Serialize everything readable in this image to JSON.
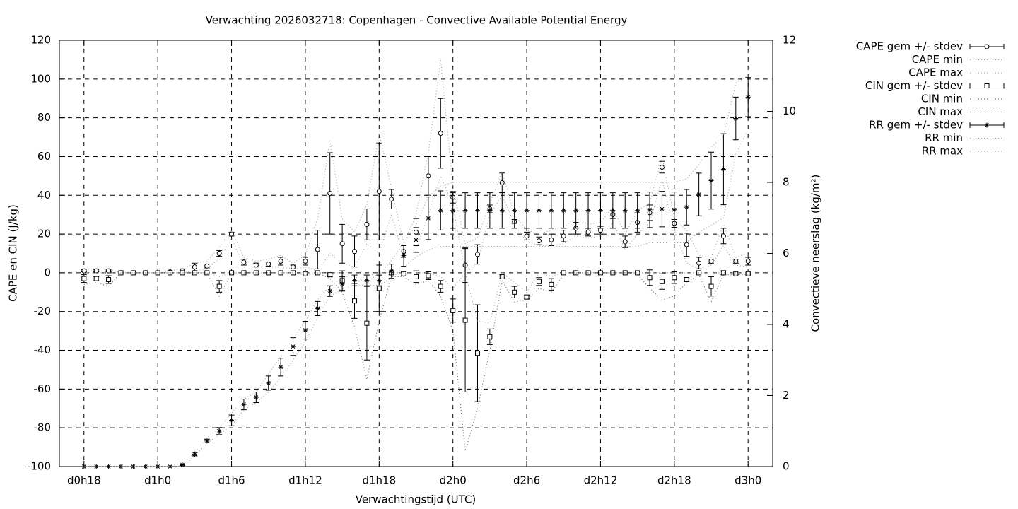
{
  "chart_data": {
    "type": "errorbar",
    "title": "Verwachting 2026032718: Copenhagen - Convective Available Potential Energy",
    "x_label": "Verwachtingstijd (UTC)",
    "y_label": "CAPE en CIN (J/kg)",
    "y2_label": "Convectieve neerslag (kg/m²)",
    "x": [
      18,
      19,
      20,
      21,
      22,
      23,
      24,
      25,
      26,
      27,
      28,
      29,
      30,
      31,
      32,
      33,
      34,
      35,
      36,
      37,
      38,
      39,
      40,
      41,
      42,
      43,
      44,
      45,
      46,
      47,
      48,
      49,
      50,
      51,
      52,
      53,
      54,
      55,
      56,
      57,
      58,
      59,
      60,
      61,
      62,
      63,
      64,
      65,
      66,
      67,
      68,
      69,
      70,
      71,
      72
    ],
    "xlim": [
      16,
      74
    ],
    "xticks": [
      {
        "value": 18,
        "label": "d0h18"
      },
      {
        "value": 24,
        "label": "d1h0"
      },
      {
        "value": 30,
        "label": "d1h6"
      },
      {
        "value": 36,
        "label": "d1h12"
      },
      {
        "value": 42,
        "label": "d1h18"
      },
      {
        "value": 48,
        "label": "d2h0"
      },
      {
        "value": 54,
        "label": "d2h6"
      },
      {
        "value": 60,
        "label": "d2h12"
      },
      {
        "value": 66,
        "label": "d2h18"
      },
      {
        "value": 72,
        "label": "d3h0"
      }
    ],
    "ylim": [
      -100,
      120
    ],
    "yticks": [
      -100,
      -80,
      -60,
      -40,
      -20,
      0,
      20,
      40,
      60,
      80,
      100,
      120
    ],
    "y2lim": [
      0,
      12
    ],
    "y2ticks": [
      0,
      2,
      4,
      6,
      8,
      10,
      12
    ],
    "grid": true,
    "legend": "outside-top-right",
    "series": [
      {
        "name": "CAPE gem +/- stdev",
        "color": "#000000",
        "marker": "circle",
        "values": [
          1,
          1,
          1,
          0,
          0,
          0,
          0,
          0.5,
          1,
          3,
          3.5,
          10,
          20,
          5.5,
          4,
          4.5,
          6,
          3,
          6,
          12,
          41,
          15,
          11,
          25,
          42,
          38,
          11,
          21,
          50,
          72,
          39,
          4,
          9.5,
          33,
          46.5,
          26.5,
          19,
          16.5,
          17,
          19,
          23,
          21,
          22,
          30,
          16,
          26,
          31,
          54.5,
          25.5,
          14.5,
          5,
          6,
          19,
          6,
          6
        ],
        "errors": [
          0.5,
          0.5,
          0.5,
          0,
          0,
          0,
          0,
          0.5,
          1,
          2,
          1,
          1.5,
          1,
          1.5,
          1,
          1,
          2,
          1,
          2,
          10,
          21,
          10,
          8,
          8,
          25,
          5,
          3,
          7,
          10,
          18,
          3,
          9,
          5,
          2,
          5,
          1,
          2,
          2,
          3,
          3,
          3,
          2,
          2,
          2,
          3,
          5,
          4,
          3,
          2,
          6,
          3,
          1,
          4,
          1,
          2
        ]
      },
      {
        "name": "CAPE min",
        "color": "#999999",
        "dash": "dotted",
        "values": [
          0,
          0,
          0,
          0,
          0,
          0,
          0,
          0,
          0,
          1,
          2,
          7,
          18,
          3,
          3,
          3,
          3,
          2,
          3,
          1,
          10,
          5,
          3,
          15,
          10,
          30,
          8,
          12,
          30,
          50,
          35,
          0,
          5,
          30,
          40,
          25,
          16,
          14,
          14,
          15,
          19,
          18,
          19,
          26,
          12,
          20,
          26,
          48,
          22,
          5,
          2,
          4,
          14,
          4,
          3
        ]
      },
      {
        "name": "CAPE max",
        "color": "#999999",
        "dash": "dotted",
        "values": [
          2,
          2,
          2,
          0,
          0,
          0,
          0,
          1,
          2,
          5,
          6,
          13,
          22,
          8,
          6,
          7,
          9,
          5,
          9,
          28,
          68,
          28,
          21,
          35,
          72,
          44,
          15,
          30,
          62,
          110,
          44,
          15,
          18,
          36,
          52,
          30,
          22,
          20,
          22,
          24,
          28,
          25,
          26,
          34,
          20,
          32,
          36,
          60,
          28,
          22,
          9,
          8,
          25,
          8,
          10
        ]
      },
      {
        "name": "CIN gem +/- stdev",
        "color": "#000000",
        "marker": "square",
        "values": [
          -3,
          -3,
          -3.5,
          0,
          0,
          0,
          0,
          0,
          0,
          0,
          0,
          -7,
          0,
          0,
          0,
          0,
          0,
          0,
          -0.5,
          0,
          -1,
          -4,
          -14.5,
          -26,
          -8,
          0,
          -0.5,
          -2,
          -1.5,
          -7,
          -19.5,
          -24.5,
          -41.5,
          -33,
          -2,
          -10,
          -12.5,
          -4.5,
          -6,
          0,
          0,
          0,
          0,
          0,
          0,
          0,
          -2.5,
          -4.5,
          -2.5,
          -3.5,
          0,
          -7,
          0,
          -0.5,
          -0.5
        ],
        "errors": [
          2,
          1,
          2,
          0,
          0,
          0,
          0,
          0,
          0,
          0,
          0,
          3,
          0,
          0,
          0,
          0,
          0,
          0,
          0.5,
          0,
          1,
          5,
          9,
          19,
          12,
          1,
          1,
          3,
          2,
          3,
          6,
          37,
          25,
          4,
          1,
          3,
          1,
          2,
          3,
          0,
          0,
          0,
          0,
          0,
          0,
          0,
          4,
          4,
          3,
          1,
          0,
          5,
          1,
          0.5,
          0.5
        ]
      },
      {
        "name": "CIN min",
        "color": "#555555",
        "dash": "dotted",
        "values": [
          -6,
          -5,
          -7,
          0,
          0,
          0,
          0,
          0,
          0,
          0,
          0,
          -12,
          0,
          0,
          0,
          0,
          0,
          0,
          -1,
          0,
          -3,
          -10,
          -28,
          -55,
          -25,
          -2,
          -2,
          -6,
          -4,
          -12,
          -30,
          -92,
          -70,
          -40,
          -4,
          -15,
          -14,
          -8,
          -10,
          -1,
          0,
          0,
          0,
          0,
          0,
          -1,
          -8,
          -14,
          -12,
          -5,
          -1,
          -15,
          -1,
          -1,
          -1
        ]
      },
      {
        "name": "CIN max",
        "color": "#999999",
        "dash": "dotted",
        "values": [
          0,
          0,
          0,
          0,
          0,
          0,
          0,
          0,
          0,
          0,
          0,
          -2,
          0,
          0,
          0,
          0,
          0,
          0,
          0,
          0,
          0,
          0,
          -2,
          -5,
          0,
          0,
          0,
          0,
          0,
          -2,
          -8,
          0,
          -25,
          -26,
          0,
          -5,
          -10,
          0,
          -2,
          0,
          0,
          0,
          0,
          0,
          0,
          0,
          0,
          0,
          0,
          0,
          0,
          0,
          0,
          0,
          0
        ]
      },
      {
        "name": "RR gem +/- stdev",
        "color": "#000000",
        "marker": "star",
        "axis": "y2",
        "values": [
          0,
          0,
          0,
          0,
          0,
          0,
          0,
          0,
          0.05,
          0.35,
          0.72,
          1,
          1.3,
          1.75,
          1.95,
          2.35,
          2.8,
          3.38,
          3.84,
          4.45,
          4.94,
          5.14,
          5.24,
          5.24,
          5.24,
          5.5,
          5.94,
          6.38,
          6.99,
          7.21,
          7.21,
          7.21,
          7.21,
          7.21,
          7.21,
          7.21,
          7.21,
          7.21,
          7.21,
          7.21,
          7.21,
          7.21,
          7.21,
          7.21,
          7.21,
          7.21,
          7.23,
          7.25,
          7.23,
          7.3,
          7.66,
          8.05,
          8.37,
          9.8,
          10.4
        ],
        "errors": [
          0,
          0,
          0,
          0,
          0,
          0,
          0,
          0,
          0.02,
          0.05,
          0.05,
          0.1,
          0.15,
          0.15,
          0.15,
          0.2,
          0.25,
          0.25,
          0.25,
          0.2,
          0.15,
          0.2,
          0.15,
          0.15,
          0.15,
          0.2,
          0.3,
          0.35,
          0.6,
          0.55,
          0.5,
          0.5,
          0.5,
          0.5,
          0.5,
          0.5,
          0.5,
          0.5,
          0.5,
          0.5,
          0.5,
          0.5,
          0.5,
          0.5,
          0.5,
          0.5,
          0.5,
          0.5,
          0.5,
          0.5,
          0.6,
          0.8,
          1.0,
          0.6,
          0.55
        ]
      },
      {
        "name": "RR min",
        "color": "#999999",
        "dash": "dotted",
        "axis": "y2",
        "values": [
          0,
          0,
          0,
          0,
          0,
          0,
          0,
          0,
          0,
          0.3,
          0.65,
          0.9,
          1.15,
          1.6,
          1.8,
          2.1,
          2.5,
          3.0,
          3.5,
          4.2,
          4.8,
          5.0,
          5.1,
          5.1,
          5.1,
          5.3,
          5.6,
          5.9,
          6.1,
          6.2,
          6.2,
          6.2,
          6.2,
          6.2,
          6.2,
          6.2,
          6.2,
          6.2,
          6.2,
          6.2,
          6.2,
          6.2,
          6.2,
          6.2,
          6.2,
          6.2,
          6.3,
          6.3,
          6.3,
          6.3,
          6.6,
          6.8,
          7.0,
          8.8,
          9.5
        ]
      },
      {
        "name": "RR max",
        "color": "#999999",
        "dash": "dotted",
        "axis": "y2",
        "values": [
          0,
          0,
          0,
          0,
          0,
          0,
          0,
          0,
          0.1,
          0.4,
          0.8,
          1.1,
          1.5,
          1.9,
          2.1,
          2.6,
          3.1,
          3.6,
          4.1,
          4.7,
          5.1,
          5.3,
          5.4,
          5.4,
          5.4,
          5.8,
          6.3,
          6.8,
          7.6,
          7.9,
          8.0,
          8.0,
          8.0,
          8.0,
          8.0,
          8.0,
          8.0,
          8.0,
          8.0,
          8.0,
          8.0,
          8.0,
          8.0,
          8.0,
          8.0,
          8.0,
          8.0,
          8.0,
          8.0,
          8.1,
          8.5,
          9.0,
          9.3,
          10.8,
          11.0
        ]
      }
    ]
  }
}
